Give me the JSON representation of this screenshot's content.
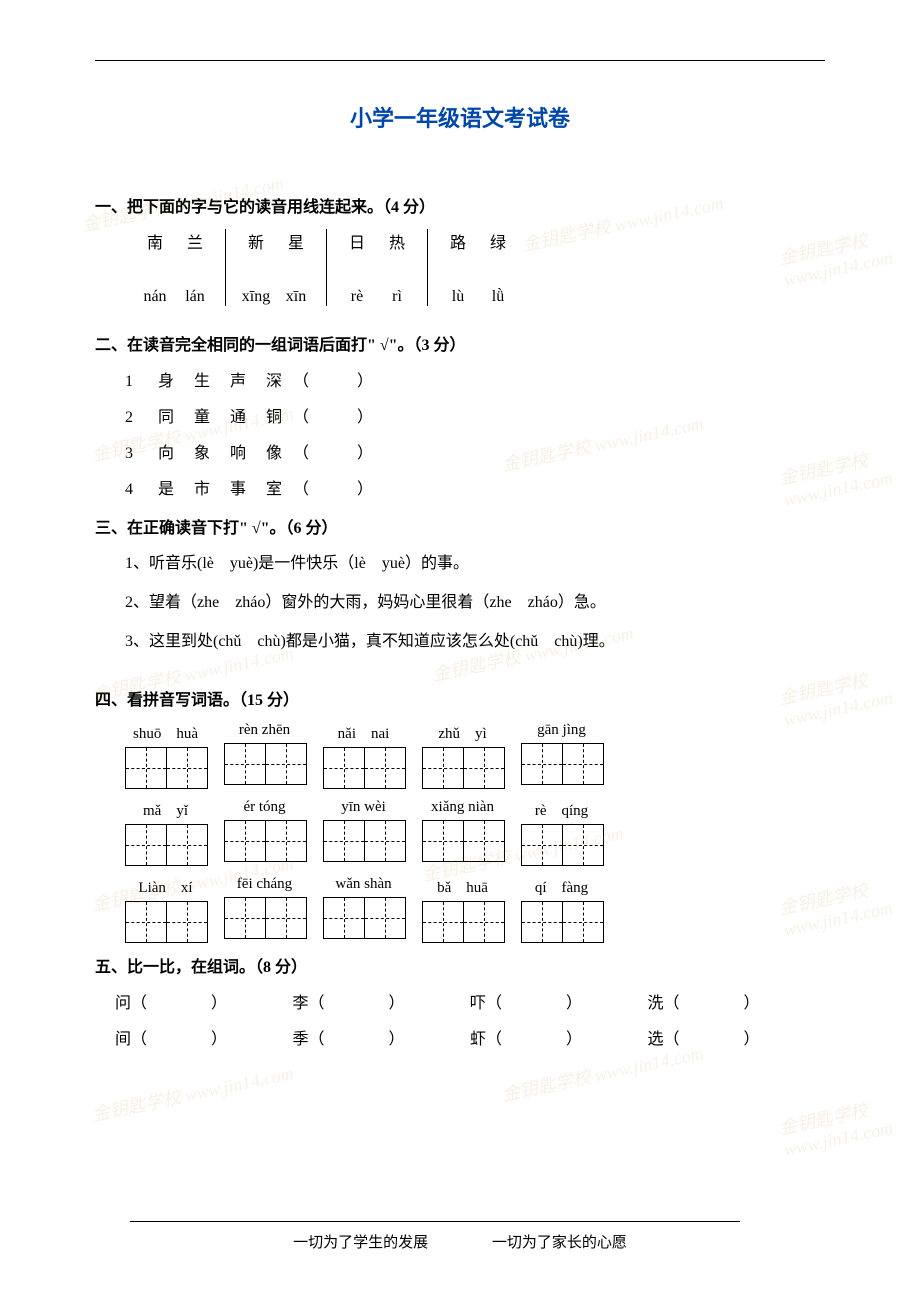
{
  "title": "小学一年级语文考试卷",
  "q1": {
    "header": "一、把下面的字与它的读音用线连起来。（4 分）",
    "groups": [
      {
        "chars": [
          "南",
          "兰"
        ],
        "pinyin": [
          "nán",
          "lán"
        ]
      },
      {
        "chars": [
          "新",
          "星"
        ],
        "pinyin": [
          "xīng",
          "xīn"
        ]
      },
      {
        "chars": [
          "日",
          "热"
        ],
        "pinyin": [
          "rè",
          "rì"
        ]
      },
      {
        "chars": [
          "路",
          "绿"
        ],
        "pinyin": [
          "lù",
          "lǜ"
        ]
      }
    ]
  },
  "q2": {
    "header": "二、在读音完全相同的一组词语后面打\" √\"。（3 分）",
    "items": [
      {
        "num": "1",
        "chars": [
          "身",
          "生",
          "声",
          "深"
        ]
      },
      {
        "num": "2",
        "chars": [
          "同",
          "童",
          "通",
          "铜"
        ]
      },
      {
        "num": "3",
        "chars": [
          "向",
          "象",
          "响",
          "像"
        ]
      },
      {
        "num": "4",
        "chars": [
          "是",
          "市",
          "事",
          "室"
        ]
      }
    ],
    "paren": "（　　　）"
  },
  "q3": {
    "header": "三、在正确读音下打\" √\"。（6 分）",
    "items": [
      "1、听音乐(lè　yuè)是一件快乐（lè　yuè）的事。",
      "2、望着（zhe　zháo）窗外的大雨，妈妈心里很着（zhe　zháo）急。",
      "3、这里到处(chǔ　chù)都是小猫，真不知道应该怎么处(chǔ　chù)理。"
    ]
  },
  "q4": {
    "header": "四、看拼音写词语。（15 分）",
    "rows": [
      [
        {
          "pinyin": "shuō　huà",
          "boxes": 2
        },
        {
          "pinyin": "rèn zhēn",
          "boxes": 2
        },
        {
          "pinyin": "nǎi　nai",
          "boxes": 2
        },
        {
          "pinyin": "zhǔ　yì",
          "boxes": 2
        },
        {
          "pinyin": "gān jìng",
          "boxes": 2
        }
      ],
      [
        {
          "pinyin": "mǎ　yǐ",
          "boxes": 2
        },
        {
          "pinyin": "ér tóng",
          "boxes": 2
        },
        {
          "pinyin": "yīn wèi",
          "boxes": 2
        },
        {
          "pinyin": "xiǎng niàn",
          "boxes": 2
        },
        {
          "pinyin": "rè　qíng",
          "boxes": 2
        }
      ],
      [
        {
          "pinyin": "Liàn　xí",
          "boxes": 2
        },
        {
          "pinyin": "fēi cháng",
          "boxes": 2
        },
        {
          "pinyin": "wǎn shàn",
          "boxes": 2
        },
        {
          "pinyin": "bǎ　huā",
          "boxes": 2
        },
        {
          "pinyin": "qí　fàng",
          "boxes": 2
        }
      ]
    ]
  },
  "q5": {
    "header": "五、比一比，在组词。（8 分）",
    "rows": [
      [
        "问（　　　　）",
        "李（　　　　）",
        "吓（　　　　）",
        "洗（　　　　）"
      ],
      [
        "间（　　　　）",
        "季（　　　　）",
        "虾（　　　　）",
        "选（　　　　）"
      ]
    ]
  },
  "footer": {
    "left": "一切为了学生的发展",
    "right": "一切为了家长的心愿"
  },
  "watermark_text": "金钥匙学校 www.jin14.com"
}
